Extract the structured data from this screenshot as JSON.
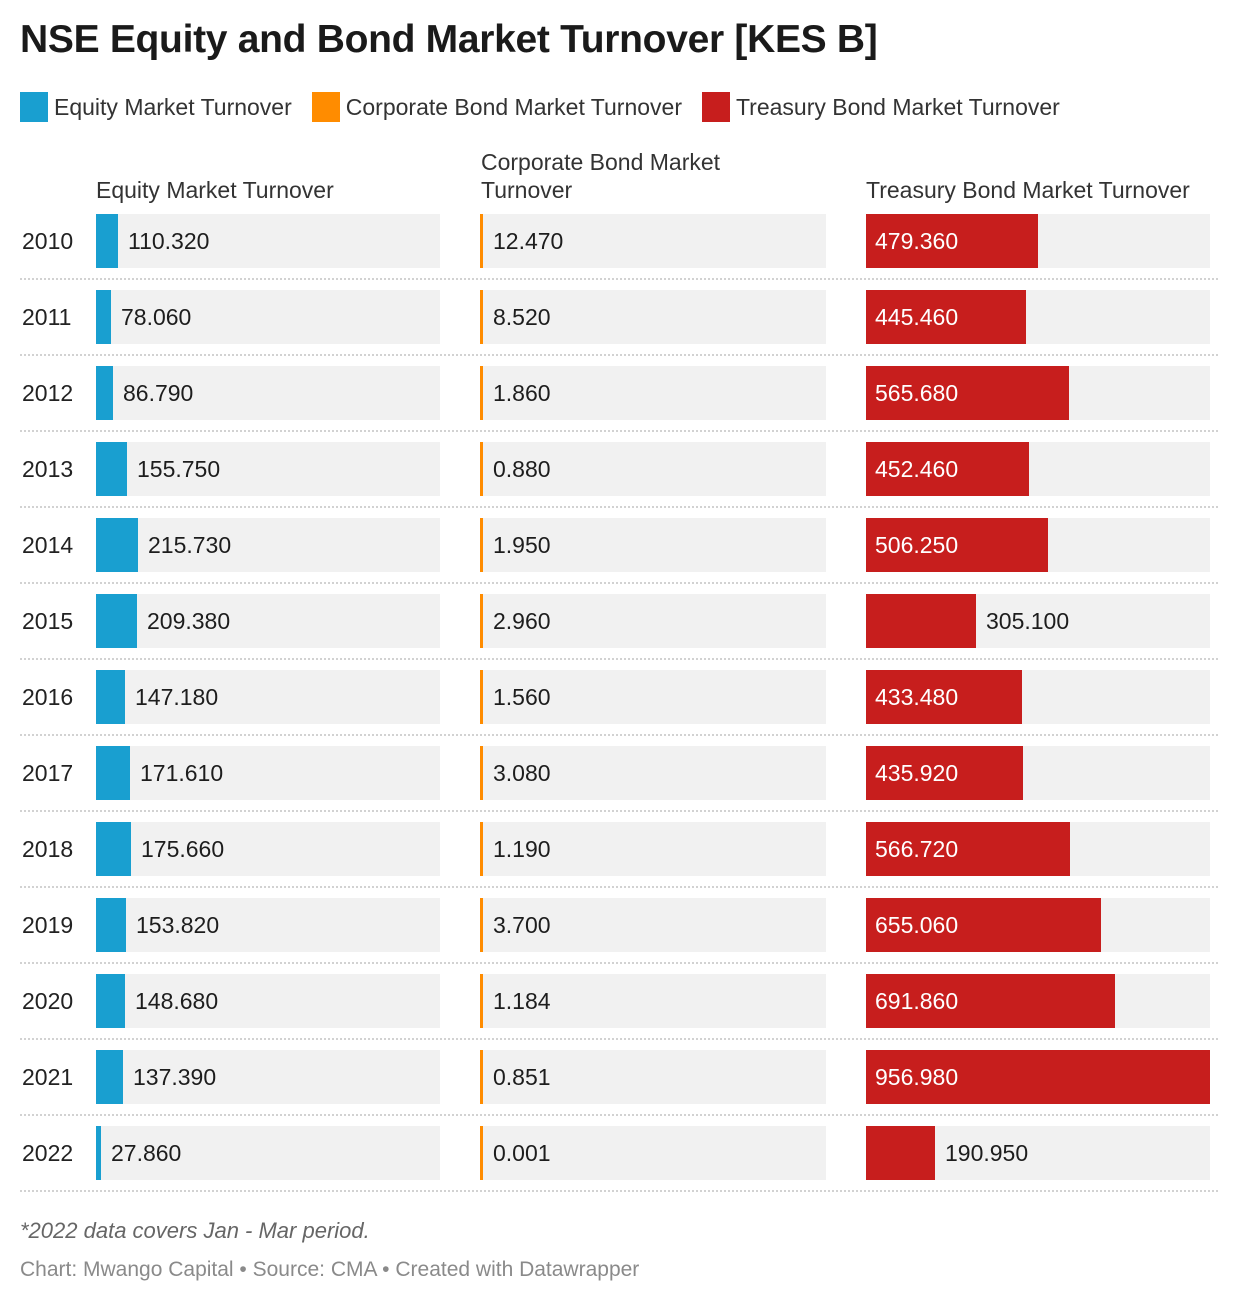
{
  "title": "NSE Equity and Bond Market Turnover [KES B]",
  "legend": [
    {
      "label": "Equity Market Turnover",
      "color": "#199fd0"
    },
    {
      "label": "Corporate Bond Market Turnover",
      "color": "#ff8c00"
    },
    {
      "label": "Treasury Bond Market Turnover",
      "color": "#c71e1d"
    }
  ],
  "note": "*2022 data covers Jan - Mar period.",
  "footer": "Chart: Mwango Capital • Source: CMA • Created with Datawrapper",
  "chart_data": {
    "type": "bar",
    "title": "NSE Equity and Bond Market Turnover [KES B]",
    "categories": [
      "2010",
      "2011",
      "2012",
      "2013",
      "2014",
      "2015",
      "2016",
      "2017",
      "2018",
      "2019",
      "2020",
      "2021",
      "2022"
    ],
    "series": [
      {
        "name": "Equity Market Turnover",
        "color": "#199fd0",
        "values": [
          110.32,
          78.06,
          86.79,
          155.75,
          215.73,
          209.38,
          147.18,
          171.61,
          175.66,
          153.82,
          148.68,
          137.39,
          27.86
        ],
        "labels": [
          "110.320",
          "78.060",
          "86.790",
          "155.750",
          "215.730",
          "209.380",
          "147.180",
          "171.610",
          "175.660",
          "153.820",
          "148.680",
          "137.390",
          "27.860"
        ]
      },
      {
        "name": "Corporate Bond Market Turnover",
        "color": "#ff8c00",
        "values": [
          12.47,
          8.52,
          1.86,
          0.88,
          1.95,
          2.96,
          1.56,
          3.08,
          1.19,
          3.7,
          1.184,
          0.851,
          0.001
        ],
        "labels": [
          "12.470",
          "8.520",
          "1.860",
          "0.880",
          "1.950",
          "2.960",
          "1.560",
          "3.080",
          "1.190",
          "3.700",
          "1.184",
          "0.851",
          "0.001"
        ]
      },
      {
        "name": "Treasury Bond Market Turnover",
        "color": "#c71e1d",
        "values": [
          479.36,
          445.46,
          565.68,
          452.46,
          506.25,
          305.1,
          433.48,
          435.92,
          566.72,
          655.06,
          691.86,
          956.98,
          190.95
        ],
        "labels": [
          "479.360",
          "445.460",
          "565.680",
          "452.460",
          "506.250",
          "305.100",
          "433.480",
          "435.920",
          "566.720",
          "655.060",
          "691.860",
          "956.980",
          "190.950"
        ]
      }
    ],
    "xlim": [
      0,
      956.98
    ],
    "legend_position": "top"
  }
}
